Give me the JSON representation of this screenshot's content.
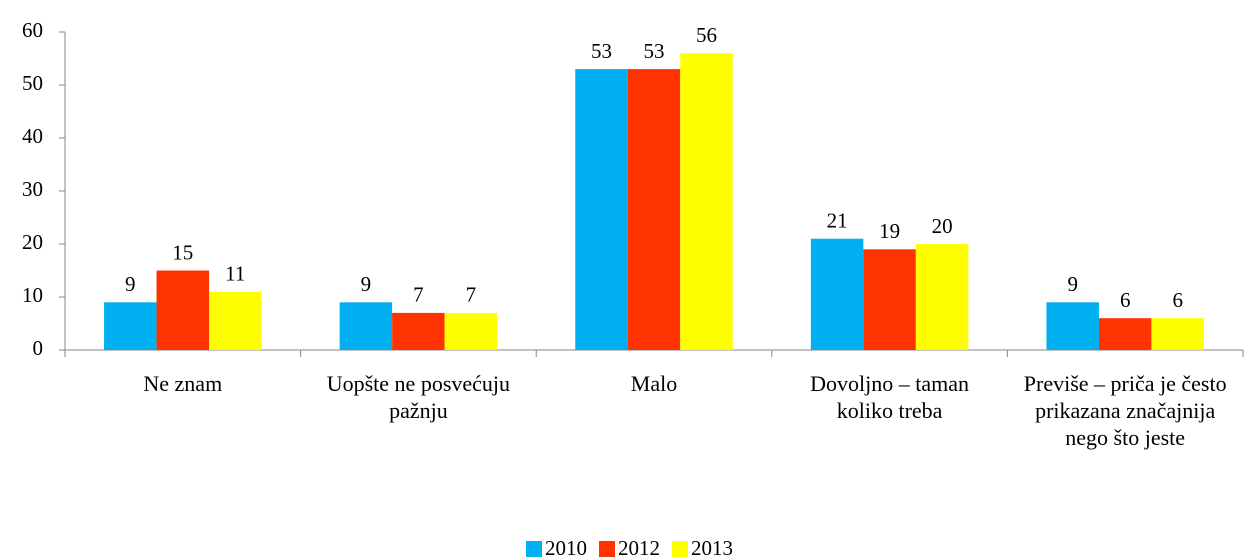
{
  "chart_data": {
    "type": "bar",
    "categories": [
      "Ne znam",
      "Uopšte ne posvećuju pažnju",
      "Malo",
      "Dovoljno – taman koliko treba",
      "Previše – priča je često prikazana značajnija nego što jeste"
    ],
    "series": [
      {
        "name": "2010",
        "color": "#00b0f0",
        "values": [
          9,
          9,
          53,
          21,
          9
        ]
      },
      {
        "name": "2012",
        "color": "#ff3300",
        "values": [
          15,
          7,
          53,
          19,
          6
        ]
      },
      {
        "name": "2013",
        "color": "#ffff00",
        "values": [
          11,
          7,
          56,
          20,
          6
        ]
      }
    ],
    "ylim": [
      0,
      60
    ],
    "yticks": [
      0,
      10,
      20,
      30,
      40,
      50,
      60
    ],
    "grid": false,
    "legend": "bottom"
  }
}
